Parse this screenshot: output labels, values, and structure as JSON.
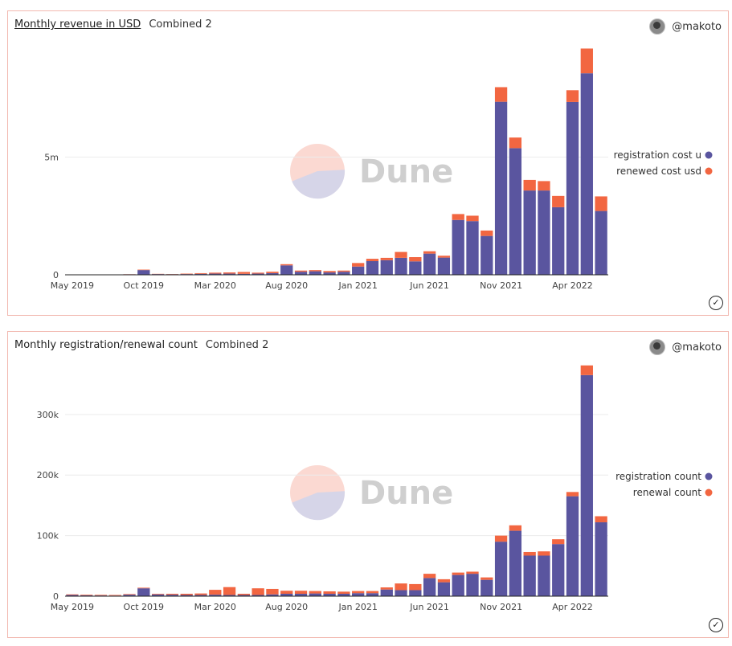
{
  "panels": [
    {
      "title": "Monthly revenue in USD",
      "subtitle": "Combined 2",
      "user": "@makoto",
      "watermark": "Dune"
    },
    {
      "title": "Monthly registration/renewal count",
      "subtitle": "Combined 2",
      "user": "@makoto",
      "watermark": "Dune"
    }
  ],
  "chart_data": [
    {
      "type": "bar",
      "stacked": true,
      "title": "Monthly revenue in USD",
      "x": [
        "2019-05",
        "2019-06",
        "2019-07",
        "2019-08",
        "2019-09",
        "2019-10",
        "2019-11",
        "2019-12",
        "2020-01",
        "2020-02",
        "2020-03",
        "2020-04",
        "2020-05",
        "2020-06",
        "2020-07",
        "2020-08",
        "2020-09",
        "2020-10",
        "2020-11",
        "2020-12",
        "2021-01",
        "2021-02",
        "2021-03",
        "2021-04",
        "2021-05",
        "2021-06",
        "2021-07",
        "2021-08",
        "2021-09",
        "2021-10",
        "2021-11",
        "2021-12",
        "2022-01",
        "2022-02",
        "2022-03",
        "2022-04",
        "2022-05",
        "2022-06"
      ],
      "x_tick_labels": [
        "May 2019",
        "Oct 2019",
        "Mar 2020",
        "Aug 2020",
        "Jan 2021",
        "Jun 2021",
        "Nov 2021",
        "Apr 2022"
      ],
      "y_tick_labels": [
        "0",
        "5m"
      ],
      "ylim": [
        0,
        10000000
      ],
      "series": [
        {
          "name": "registration cost u",
          "color": "#5a559f",
          "values": [
            10000,
            10000,
            8000,
            8000,
            20000,
            200000,
            30000,
            25000,
            30000,
            40000,
            50000,
            50000,
            40000,
            50000,
            70000,
            400000,
            130000,
            150000,
            100000,
            130000,
            350000,
            580000,
            620000,
            720000,
            570000,
            900000,
            730000,
            2330000,
            2280000,
            1650000,
            7350000,
            5380000,
            3580000,
            3580000,
            2870000,
            7340000,
            8560000,
            2710000
          ]
        },
        {
          "name": "renewed cost usd",
          "color": "#f26641",
          "values": [
            2000,
            2000,
            2000,
            2000,
            5000,
            20000,
            10000,
            8000,
            20000,
            30000,
            40000,
            50000,
            80000,
            40000,
            60000,
            50000,
            50000,
            50000,
            60000,
            50000,
            150000,
            100000,
            100000,
            250000,
            180000,
            100000,
            80000,
            250000,
            230000,
            230000,
            620000,
            450000,
            450000,
            400000,
            480000,
            500000,
            1050000,
            620000
          ]
        }
      ]
    },
    {
      "type": "bar",
      "stacked": true,
      "title": "Monthly registration/renewal count",
      "x": [
        "2019-05",
        "2019-06",
        "2019-07",
        "2019-08",
        "2019-09",
        "2019-10",
        "2019-11",
        "2019-12",
        "2020-01",
        "2020-02",
        "2020-03",
        "2020-04",
        "2020-05",
        "2020-06",
        "2020-07",
        "2020-08",
        "2020-09",
        "2020-10",
        "2020-11",
        "2020-12",
        "2021-01",
        "2021-02",
        "2021-03",
        "2021-04",
        "2021-05",
        "2021-06",
        "2021-07",
        "2021-08",
        "2021-09",
        "2021-10",
        "2021-11",
        "2021-12",
        "2022-01",
        "2022-02",
        "2022-03",
        "2022-04",
        "2022-05",
        "2022-06"
      ],
      "x_tick_labels": [
        "May 2019",
        "Oct 2019",
        "Mar 2020",
        "Aug 2020",
        "Jan 2021",
        "Jun 2021",
        "Nov 2021",
        "Apr 2022"
      ],
      "y_tick_labels": [
        "0",
        "100k",
        "200k",
        "300k"
      ],
      "ylim": [
        0,
        390000
      ],
      "series": [
        {
          "name": "registration count",
          "color": "#5a559f",
          "values": [
            2000,
            1500,
            1200,
            1000,
            2500,
            13000,
            3000,
            2500,
            2000,
            2000,
            2500,
            2000,
            2000,
            2000,
            3000,
            4000,
            4000,
            4500,
            4000,
            4000,
            5000,
            5000,
            11000,
            10000,
            10000,
            30000,
            23000,
            35000,
            37000,
            27000,
            90000,
            108000,
            67000,
            67000,
            86000,
            165000,
            365000,
            122000
          ]
        },
        {
          "name": "renewal count",
          "color": "#f26641",
          "values": [
            1000,
            1000,
            1000,
            1000,
            1000,
            1000,
            1000,
            1500,
            2000,
            2500,
            8000,
            13000,
            2000,
            11000,
            9000,
            5000,
            5000,
            4000,
            4000,
            3500,
            3500,
            3500,
            3500,
            11000,
            10000,
            7000,
            5000,
            4000,
            3500,
            4000,
            10000,
            9000,
            6000,
            7000,
            8000,
            7000,
            16000,
            10000
          ]
        }
      ]
    }
  ]
}
